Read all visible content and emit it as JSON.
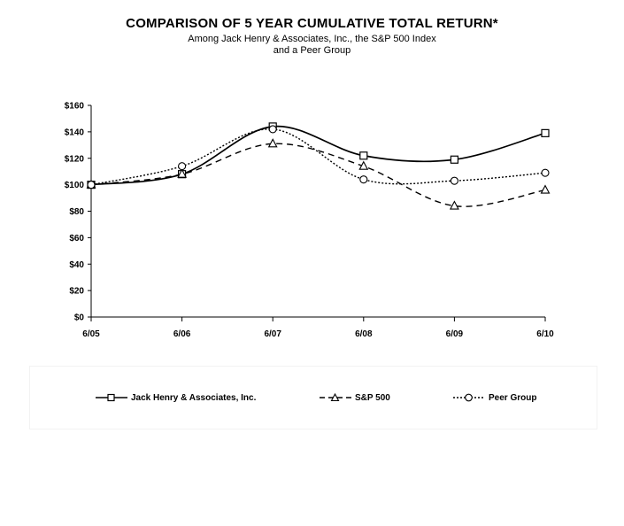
{
  "chart_data": {
    "type": "line",
    "title": "COMPARISON OF 5 YEAR CUMULATIVE TOTAL RETURN*",
    "subtitle_line1": "Among Jack Henry & Associates, Inc., the S&P 500 Index",
    "subtitle_line2": "and a Peer Group",
    "categories": [
      "6/05",
      "6/06",
      "6/07",
      "6/08",
      "6/09",
      "6/10"
    ],
    "ylim": [
      0,
      160
    ],
    "yticks": [
      0,
      20,
      40,
      60,
      80,
      100,
      120,
      140,
      160
    ],
    "ytick_labels": [
      "$0",
      "$20",
      "$40",
      "$60",
      "$80",
      "$100",
      "$120",
      "$140",
      "$160"
    ],
    "legend_position": "bottom",
    "series": [
      {
        "name": "Jack Henry & Associates, Inc.",
        "values": [
          100,
          108,
          144,
          122,
          119,
          139
        ],
        "marker": "square",
        "dash": "solid"
      },
      {
        "name": "S&P 500",
        "values": [
          100,
          108,
          131,
          114,
          84,
          96
        ],
        "marker": "triangle",
        "dash": "dashed"
      },
      {
        "name": "Peer Group",
        "values": [
          100,
          114,
          142,
          104,
          103,
          109
        ],
        "marker": "circle",
        "dash": "dotted"
      }
    ]
  }
}
